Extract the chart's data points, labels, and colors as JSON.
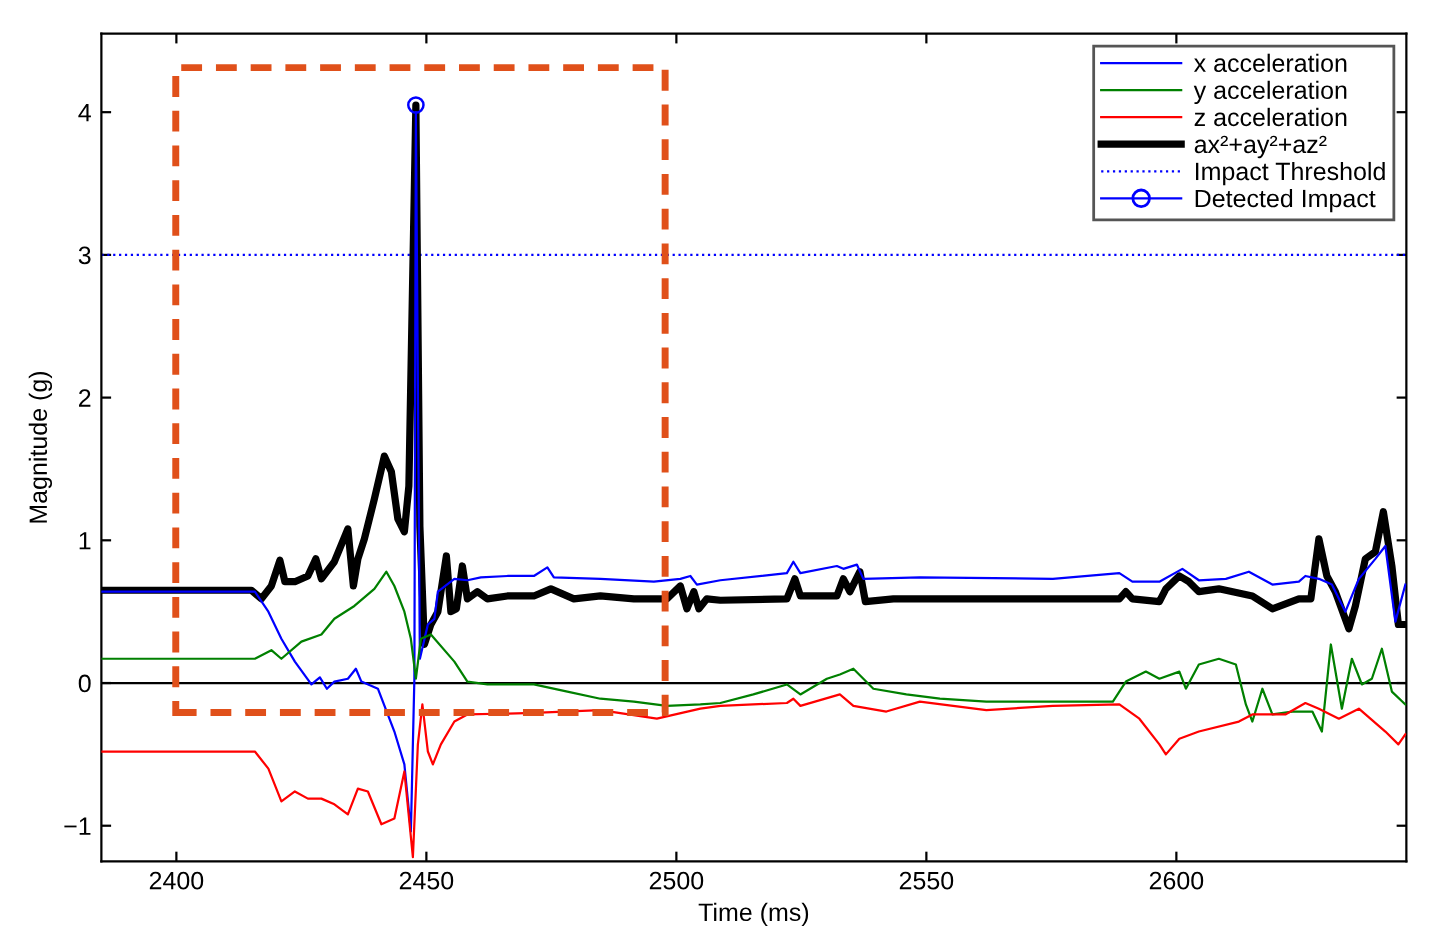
{
  "chart_data": {
    "type": "line",
    "xlabel": "Time (ms)",
    "ylabel": "Magnitude (g)",
    "xlim": [
      2385,
      2646
    ],
    "ylim": [
      -1.25,
      4.55
    ],
    "xticks": [
      2400,
      2450,
      2500,
      2550,
      2600
    ],
    "yticks": [
      -1,
      0,
      1,
      2,
      3,
      4
    ],
    "grid": false,
    "legend": "top right",
    "line_style": "solid",
    "marker": "none",
    "series": [
      {
        "name": "x acceleration",
        "color": "#0000ff",
        "x": [
          2385,
          2415.7,
          2418.4,
          2421,
          2423.7,
          2427,
          2428.7,
          2430.1,
          2431.6,
          2434.3,
          2435.9,
          2437,
          2440.3,
          2443.6,
          2445.6,
          2446.9,
          2447.6,
          2447.9,
          2448.7,
          2450.3,
          2451.6,
          2452.3,
          2455.6,
          2458.2,
          2460.9,
          2466.2,
          2471.5,
          2474.2,
          2475.5,
          2484.8,
          2495.5,
          2500.8,
          2502.8,
          2504.1,
          2508.8,
          2522.1,
          2523.4,
          2524.8,
          2532.1,
          2533.4,
          2536.1,
          2537.4,
          2548.7,
          2575.3,
          2588.6,
          2591.2,
          2596.6,
          2601.2,
          2604.5,
          2609.9,
          2614.5,
          2619.2,
          2624.5,
          2625.8,
          2628.5,
          2631.1,
          2633.8,
          2636.5,
          2639.8,
          2641.8,
          2643.8,
          2645.8
        ],
        "values": [
          0.64,
          0.64,
          0.5,
          0.31,
          0.15,
          -0.01,
          0.04,
          -0.04,
          0.01,
          0.03,
          0.1,
          0.01,
          -0.04,
          -0.34,
          -0.57,
          -1.04,
          0.03,
          4.0,
          0.17,
          0.41,
          0.45,
          0.64,
          0.73,
          0.72,
          0.74,
          0.75,
          0.75,
          0.81,
          0.74,
          0.73,
          0.71,
          0.73,
          0.75,
          0.69,
          0.72,
          0.77,
          0.85,
          0.77,
          0.82,
          0.8,
          0.83,
          0.73,
          0.74,
          0.73,
          0.77,
          0.71,
          0.71,
          0.8,
          0.72,
          0.73,
          0.78,
          0.69,
          0.71,
          0.75,
          0.73,
          0.69,
          0.5,
          0.73,
          0.87,
          0.96,
          0.43,
          0.69
        ]
      },
      {
        "name": "y acceleration",
        "color": "#008000",
        "x": [
          2385,
          2415.7,
          2419,
          2421,
          2425,
          2429,
          2431.6,
          2435.6,
          2439.6,
          2442,
          2443.6,
          2445.6,
          2446.9,
          2447.9,
          2448.9,
          2450.9,
          2455.6,
          2458.2,
          2462.2,
          2471.5,
          2478.2,
          2484.8,
          2491.5,
          2498.1,
          2504.8,
          2508.8,
          2515.4,
          2522.1,
          2524.8,
          2530.1,
          2532.7,
          2535.4,
          2539.4,
          2546,
          2552.7,
          2562,
          2575.3,
          2587.3,
          2589.9,
          2593.9,
          2596.6,
          2600.6,
          2601.9,
          2604.5,
          2608.5,
          2611.9,
          2613.9,
          2615.2,
          2617.2,
          2619.2,
          2623.2,
          2627.2,
          2629.1,
          2630.9,
          2633.1,
          2635.1,
          2637.1,
          2639.1,
          2641.1,
          2643.1,
          2645.8
        ],
        "values": [
          0.17,
          0.17,
          0.23,
          0.17,
          0.29,
          0.34,
          0.45,
          0.54,
          0.66,
          0.78,
          0.68,
          0.5,
          0.31,
          0.03,
          0.31,
          0.34,
          0.15,
          0.01,
          -0.01,
          -0.01,
          -0.06,
          -0.11,
          -0.13,
          -0.16,
          -0.15,
          -0.14,
          -0.08,
          -0.01,
          -0.08,
          0.03,
          0.06,
          0.1,
          -0.04,
          -0.08,
          -0.11,
          -0.13,
          -0.13,
          -0.13,
          0.01,
          0.08,
          0.03,
          0.08,
          -0.04,
          0.13,
          0.17,
          0.13,
          -0.15,
          -0.27,
          -0.04,
          -0.22,
          -0.2,
          -0.2,
          -0.34,
          0.27,
          -0.18,
          0.17,
          -0.01,
          0.03,
          0.24,
          -0.06,
          -0.15
        ]
      },
      {
        "name": "z acceleration",
        "color": "#ff0000",
        "x": [
          2385,
          2415.7,
          2418.4,
          2421,
          2423.7,
          2426.3,
          2429,
          2431.6,
          2434.3,
          2436.3,
          2438.3,
          2441,
          2443.6,
          2445.6,
          2447.3,
          2448.3,
          2449.2,
          2450.3,
          2451.3,
          2452.9,
          2455.6,
          2458.2,
          2471.5,
          2484.8,
          2496.1,
          2504.8,
          2508.8,
          2522.1,
          2523.4,
          2524.8,
          2532.7,
          2535.4,
          2542.0,
          2548.7,
          2562.0,
          2575.3,
          2588.6,
          2592.6,
          2596.6,
          2597.9,
          2600.6,
          2604.5,
          2612.5,
          2615.2,
          2621.8,
          2625.8,
          2628.5,
          2632.5,
          2636.5,
          2641.8,
          2644.4,
          2645.8
        ],
        "values": [
          -0.48,
          -0.48,
          -0.6,
          -0.83,
          -0.76,
          -0.81,
          -0.81,
          -0.85,
          -0.92,
          -0.74,
          -0.76,
          -0.99,
          -0.95,
          -0.62,
          -1.22,
          -0.43,
          -0.15,
          -0.48,
          -0.57,
          -0.43,
          -0.27,
          -0.22,
          -0.21,
          -0.19,
          -0.25,
          -0.18,
          -0.16,
          -0.14,
          -0.11,
          -0.16,
          -0.08,
          -0.16,
          -0.2,
          -0.13,
          -0.19,
          -0.16,
          -0.15,
          -0.25,
          -0.43,
          -0.5,
          -0.39,
          -0.34,
          -0.27,
          -0.22,
          -0.22,
          -0.14,
          -0.18,
          -0.25,
          -0.18,
          -0.34,
          -0.43,
          -0.36
        ]
      },
      {
        "name": "ax²+ay²+az²",
        "color": "#000000",
        "x": [
          2385,
          2415,
          2417,
          2419,
          2420.7,
          2421.7,
          2423.7,
          2426.3,
          2427.9,
          2429,
          2431.6,
          2434.3,
          2435.4,
          2436.3,
          2437.6,
          2439.6,
          2441.6,
          2443,
          2444.3,
          2445.6,
          2446.5,
          2447.9,
          2448.7,
          2449.6,
          2450.9,
          2452.3,
          2454,
          2454.9,
          2456,
          2457.2,
          2458.2,
          2460.2,
          2462.2,
          2466.2,
          2471.5,
          2474.9,
          2479.5,
          2484.8,
          2491.5,
          2498.1,
          2500.8,
          2502.1,
          2503.5,
          2504.5,
          2506.1,
          2508.8,
          2522.1,
          2523.7,
          2524.8,
          2532.1,
          2533.4,
          2534.7,
          2536.7,
          2537.8,
          2543.4,
          2562,
          2588.6,
          2589.9,
          2591.2,
          2596.6,
          2597.9,
          2600.6,
          2602.5,
          2604.5,
          2608.5,
          2615.2,
          2619.2,
          2624.5,
          2626.9,
          2628.5,
          2630.1,
          2631.8,
          2634.5,
          2635.8,
          2637.8,
          2639.8,
          2641.4,
          2643.1,
          2644.4,
          2645.8
        ],
        "values": [
          0.65,
          0.65,
          0.59,
          0.68,
          0.86,
          0.71,
          0.71,
          0.75,
          0.87,
          0.73,
          0.85,
          1.08,
          0.68,
          0.87,
          1.01,
          1.29,
          1.59,
          1.48,
          1.15,
          1.06,
          1.38,
          4.05,
          1.1,
          0.27,
          0.41,
          0.5,
          0.89,
          0.5,
          0.52,
          0.82,
          0.59,
          0.64,
          0.59,
          0.61,
          0.61,
          0.66,
          0.59,
          0.61,
          0.59,
          0.59,
          0.68,
          0.52,
          0.64,
          0.52,
          0.59,
          0.58,
          0.59,
          0.73,
          0.61,
          0.61,
          0.73,
          0.64,
          0.78,
          0.57,
          0.59,
          0.59,
          0.59,
          0.64,
          0.59,
          0.57,
          0.66,
          0.75,
          0.71,
          0.64,
          0.66,
          0.61,
          0.52,
          0.59,
          0.59,
          1.01,
          0.75,
          0.64,
          0.38,
          0.54,
          0.87,
          0.92,
          1.2,
          0.82,
          0.41,
          0.41
        ]
      },
      {
        "name": "Detected Impact",
        "type": "scatter",
        "color": "#0000ff",
        "marker": "circle",
        "x": [
          2447.9
        ],
        "values": [
          4.05
        ]
      }
    ],
    "ref_lines": [
      {
        "axis": "y",
        "value": 3,
        "label": "Impact Threshold",
        "color": "#0000ff",
        "line_style": "dotted"
      },
      {
        "axis": "y",
        "value": 0,
        "color": "#000000",
        "line_style": "solid"
      }
    ]
  }
}
